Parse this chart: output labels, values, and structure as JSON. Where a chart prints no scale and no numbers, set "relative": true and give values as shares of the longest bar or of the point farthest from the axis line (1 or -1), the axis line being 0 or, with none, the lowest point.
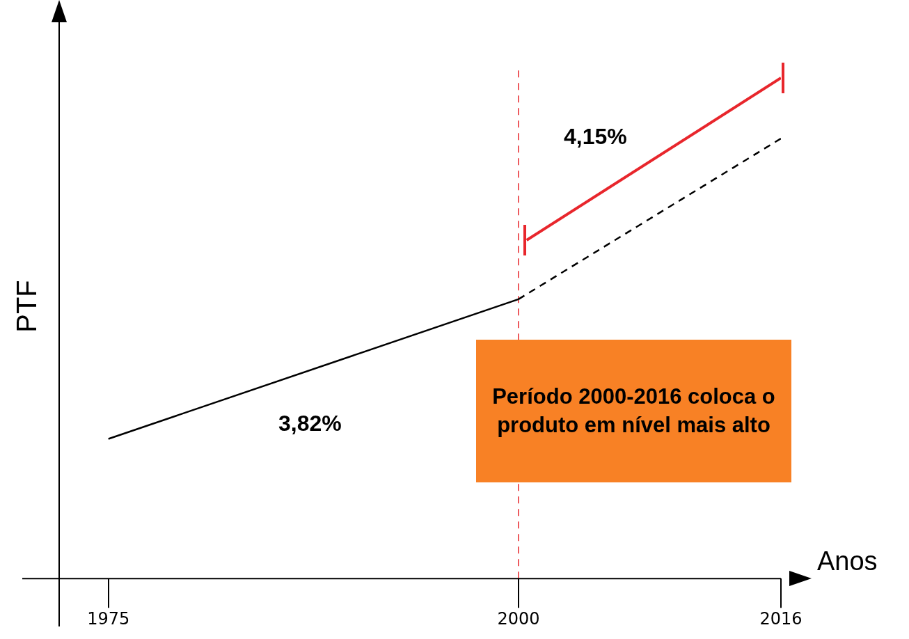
{
  "chart_data": {
    "type": "line",
    "relative": true,
    "xlabel": "Anos",
    "ylabel": "PTF",
    "xlim": [
      1972,
      2016
    ],
    "xticks": [
      1975,
      2000,
      2016
    ],
    "grid": false,
    "legend": false,
    "marker": "none",
    "series": [
      {
        "color": "#000000",
        "x": [
          1975,
          2000
        ],
        "values": [
          0.279,
          0.558
        ],
        "line_style": "solid"
      },
      {
        "color": "#000000",
        "x": [
          2000,
          2016
        ],
        "values": [
          0.558,
          0.879
        ],
        "line_style": "dashed"
      },
      {
        "color": "#e8262c",
        "x": [
          2000.5,
          2016
        ],
        "values": [
          0.676,
          1
        ],
        "line_style": "solid"
      }
    ],
    "ref_lines": [
      {
        "axis": "x",
        "value": 2000,
        "color": "#e8262c",
        "line_style": "dashed"
      }
    ],
    "annotations": [
      "3,82%",
      "4,15%",
      "Período 2000-2016 coloca o produto em nível mais alto"
    ]
  }
}
